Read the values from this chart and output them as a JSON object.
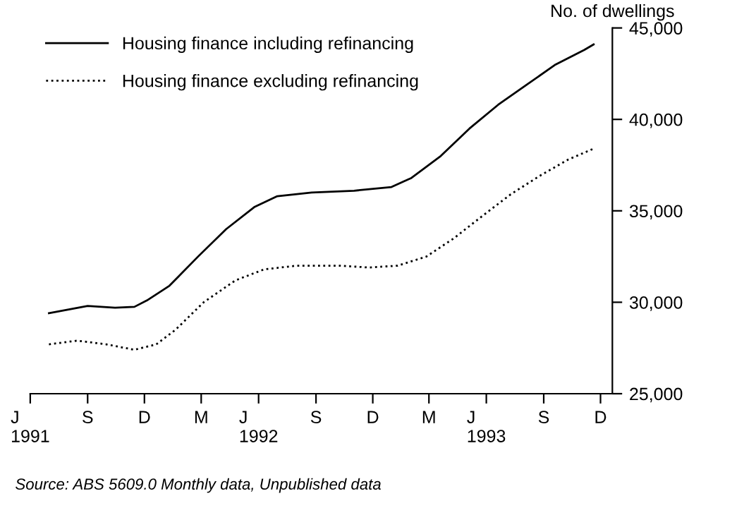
{
  "chart_data": {
    "type": "line",
    "ylabel": "No. of dwellings",
    "series": [
      {
        "name": "Housing finance including refinancing",
        "color": "#000000",
        "line_style": "solid",
        "x": [
          "1991-07-01",
          "1991-09-01",
          "1991-10-15",
          "1991-11-15",
          "1991-12-05",
          "1992-01-10",
          "1992-02-25",
          "1992-04-10",
          "1992-05-25",
          "1992-07-01",
          "1992-08-25",
          "1992-11-01",
          "1992-12-31",
          "1993-02-01",
          "1993-03-20",
          "1993-05-05",
          "1993-06-20",
          "1993-08-05",
          "1993-09-20",
          "1993-11-05",
          "1993-11-20"
        ],
        "values": [
          29400,
          29800,
          29700,
          29750,
          30100,
          30900,
          32500,
          34000,
          35200,
          35800,
          36000,
          36100,
          36300,
          36800,
          38000,
          39500,
          40800,
          41900,
          43000,
          43800,
          44100
        ]
      },
      {
        "name": "Housing finance excluding refinancing",
        "color": "#000000",
        "line_style": "dotted",
        "x": [
          "1991-07-01",
          "1991-08-15",
          "1991-10-01",
          "1991-11-15",
          "1991-12-20",
          "1992-01-20",
          "1992-03-05",
          "1992-04-25",
          "1992-06-10",
          "1992-08-01",
          "1992-10-10",
          "1992-11-25",
          "1993-01-10",
          "1993-02-25",
          "1993-04-10",
          "1993-05-25",
          "1993-07-10",
          "1993-08-25",
          "1993-10-10",
          "1993-11-20"
        ],
        "values": [
          27700,
          27900,
          27700,
          27400,
          27700,
          28500,
          30000,
          31200,
          31800,
          32000,
          32000,
          31900,
          32000,
          32500,
          33500,
          34700,
          35900,
          36900,
          37800,
          38400
        ]
      }
    ],
    "xlim": [
      "1991-06-01",
      "1993-12-20"
    ],
    "xticks": [
      {
        "value": "1991-06-01",
        "label": "J\n1991"
      },
      {
        "value": "1991-09-01",
        "label": "S"
      },
      {
        "value": "1991-12-01",
        "label": "D"
      },
      {
        "value": "1992-03-01",
        "label": "M"
      },
      {
        "value": "1992-06-01",
        "label": "J\n1992"
      },
      {
        "value": "1992-09-01",
        "label": "S"
      },
      {
        "value": "1992-12-01",
        "label": "D"
      },
      {
        "value": "1993-03-01",
        "label": "M"
      },
      {
        "value": "1993-06-01",
        "label": "J\n1993"
      },
      {
        "value": "1993-09-01",
        "label": "S"
      },
      {
        "value": "1993-12-01",
        "label": "D"
      }
    ],
    "ylim": [
      25000,
      45000
    ],
    "yticks": [
      {
        "value": 25000,
        "label": "25,000"
      },
      {
        "value": 30000,
        "label": "30,000"
      },
      {
        "value": 35000,
        "label": "35,000"
      },
      {
        "value": 40000,
        "label": "40,000"
      },
      {
        "value": 45000,
        "label": "45,000"
      }
    ],
    "grid": false,
    "legend": "top left",
    "annotations": [
      "Source: ABS 5609.0 Monthly data, Unpublished data"
    ]
  }
}
